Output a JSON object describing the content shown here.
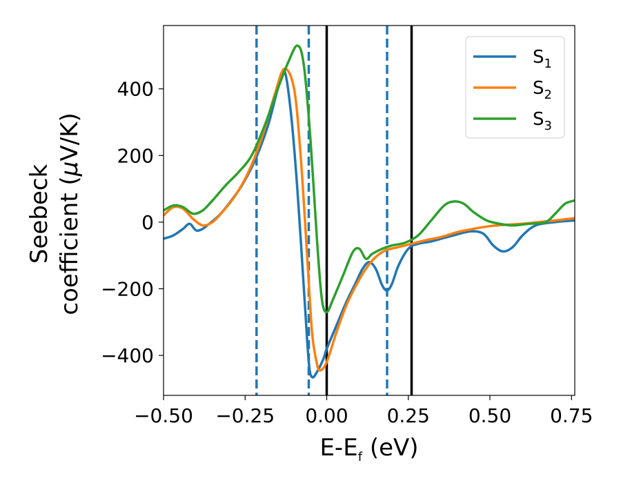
{
  "chart_data": {
    "type": "line",
    "title": "",
    "xlabel": {
      "main": "E-E",
      "sub": "f",
      "unit": " (eV)"
    },
    "ylabel": {
      "line1": "Seebeck",
      "line2": "coefficient  (",
      "mu": "μ",
      "unit": "V/K)"
    },
    "xlim": [
      -0.5,
      0.76
    ],
    "ylim": [
      -520,
      590
    ],
    "xticks": [
      -0.5,
      -0.25,
      0.0,
      0.25,
      0.5,
      0.75
    ],
    "xtick_labels": [
      "−0.50",
      "−0.25",
      "0.00",
      "0.25",
      "0.50",
      "0.75"
    ],
    "yticks": [
      -400,
      -200,
      0,
      200,
      400
    ],
    "ytick_labels": [
      "−400",
      "−200",
      "0",
      "200",
      "400"
    ],
    "grid": false,
    "legend_position": "top-right",
    "vlines": [
      {
        "x": -0.215,
        "style": "dashed",
        "color": "#1f77b4"
      },
      {
        "x": -0.055,
        "style": "dashed",
        "color": "#1f77b4"
      },
      {
        "x": 0.185,
        "style": "dashed",
        "color": "#1f77b4"
      },
      {
        "x": 0.0,
        "style": "solid",
        "color": "#000000"
      },
      {
        "x": 0.26,
        "style": "solid",
        "color": "#000000"
      }
    ],
    "series": [
      {
        "name": "S",
        "sub": "1",
        "color": "#1f77b4",
        "points": [
          [
            -0.5,
            -50
          ],
          [
            -0.47,
            -40
          ],
          [
            -0.44,
            -20
          ],
          [
            -0.42,
            -5
          ],
          [
            -0.4,
            -25
          ],
          [
            -0.38,
            -20
          ],
          [
            -0.36,
            -5
          ],
          [
            -0.33,
            20
          ],
          [
            -0.3,
            55
          ],
          [
            -0.26,
            110
          ],
          [
            -0.22,
            185
          ],
          [
            -0.18,
            290
          ],
          [
            -0.15,
            400
          ],
          [
            -0.13,
            455
          ],
          [
            -0.11,
            330
          ],
          [
            -0.09,
            100
          ],
          [
            -0.07,
            -200
          ],
          [
            -0.055,
            -420
          ],
          [
            -0.045,
            -465
          ],
          [
            -0.03,
            -450
          ],
          [
            -0.01,
            -410
          ],
          [
            0.0,
            -380
          ],
          [
            0.03,
            -310
          ],
          [
            0.06,
            -240
          ],
          [
            0.09,
            -180
          ],
          [
            0.11,
            -140
          ],
          [
            0.13,
            -120
          ],
          [
            0.15,
            -140
          ],
          [
            0.17,
            -190
          ],
          [
            0.185,
            -205
          ],
          [
            0.2,
            -185
          ],
          [
            0.22,
            -130
          ],
          [
            0.25,
            -80
          ],
          [
            0.28,
            -65
          ],
          [
            0.32,
            -58
          ],
          [
            0.38,
            -42
          ],
          [
            0.44,
            -28
          ],
          [
            0.48,
            -35
          ],
          [
            0.51,
            -70
          ],
          [
            0.54,
            -88
          ],
          [
            0.57,
            -75
          ],
          [
            0.6,
            -40
          ],
          [
            0.64,
            -10
          ],
          [
            0.7,
            0
          ],
          [
            0.76,
            5
          ]
        ]
      },
      {
        "name": "S",
        "sub": "2",
        "color": "#ff7f0e",
        "points": [
          [
            -0.5,
            20
          ],
          [
            -0.47,
            45
          ],
          [
            -0.44,
            40
          ],
          [
            -0.41,
            10
          ],
          [
            -0.38,
            -10
          ],
          [
            -0.35,
            0
          ],
          [
            -0.32,
            30
          ],
          [
            -0.28,
            80
          ],
          [
            -0.24,
            150
          ],
          [
            -0.2,
            250
          ],
          [
            -0.16,
            380
          ],
          [
            -0.13,
            460
          ],
          [
            -0.1,
            400
          ],
          [
            -0.08,
            200
          ],
          [
            -0.06,
            -100
          ],
          [
            -0.045,
            -330
          ],
          [
            -0.03,
            -425
          ],
          [
            -0.02,
            -445
          ],
          [
            0.0,
            -420
          ],
          [
            0.03,
            -330
          ],
          [
            0.06,
            -250
          ],
          [
            0.09,
            -190
          ],
          [
            0.12,
            -140
          ],
          [
            0.15,
            -105
          ],
          [
            0.18,
            -85
          ],
          [
            0.22,
            -75
          ],
          [
            0.26,
            -65
          ],
          [
            0.3,
            -55
          ],
          [
            0.35,
            -45
          ],
          [
            0.4,
            -30
          ],
          [
            0.45,
            -20
          ],
          [
            0.5,
            -12
          ],
          [
            0.55,
            -8
          ],
          [
            0.6,
            -5
          ],
          [
            0.65,
            0
          ],
          [
            0.7,
            5
          ],
          [
            0.76,
            12
          ]
        ]
      },
      {
        "name": "S",
        "sub": "3",
        "color": "#2ca02c",
        "points": [
          [
            -0.5,
            35
          ],
          [
            -0.47,
            50
          ],
          [
            -0.44,
            45
          ],
          [
            -0.41,
            25
          ],
          [
            -0.38,
            35
          ],
          [
            -0.35,
            65
          ],
          [
            -0.31,
            110
          ],
          [
            -0.27,
            150
          ],
          [
            -0.23,
            200
          ],
          [
            -0.19,
            290
          ],
          [
            -0.15,
            400
          ],
          [
            -0.12,
            475
          ],
          [
            -0.09,
            530
          ],
          [
            -0.07,
            470
          ],
          [
            -0.05,
            250
          ],
          [
            -0.03,
            -50
          ],
          [
            -0.015,
            -230
          ],
          [
            0.0,
            -270
          ],
          [
            0.02,
            -230
          ],
          [
            0.05,
            -160
          ],
          [
            0.08,
            -90
          ],
          [
            0.1,
            -80
          ],
          [
            0.12,
            -110
          ],
          [
            0.14,
            -95
          ],
          [
            0.17,
            -80
          ],
          [
            0.2,
            -70
          ],
          [
            0.24,
            -62
          ],
          [
            0.28,
            -40
          ],
          [
            0.32,
            5
          ],
          [
            0.36,
            50
          ],
          [
            0.39,
            62
          ],
          [
            0.42,
            55
          ],
          [
            0.45,
            30
          ],
          [
            0.49,
            5
          ],
          [
            0.53,
            -5
          ],
          [
            0.57,
            -10
          ],
          [
            0.62,
            -5
          ],
          [
            0.67,
            0
          ],
          [
            0.7,
            25
          ],
          [
            0.73,
            55
          ],
          [
            0.76,
            65
          ]
        ]
      }
    ]
  }
}
